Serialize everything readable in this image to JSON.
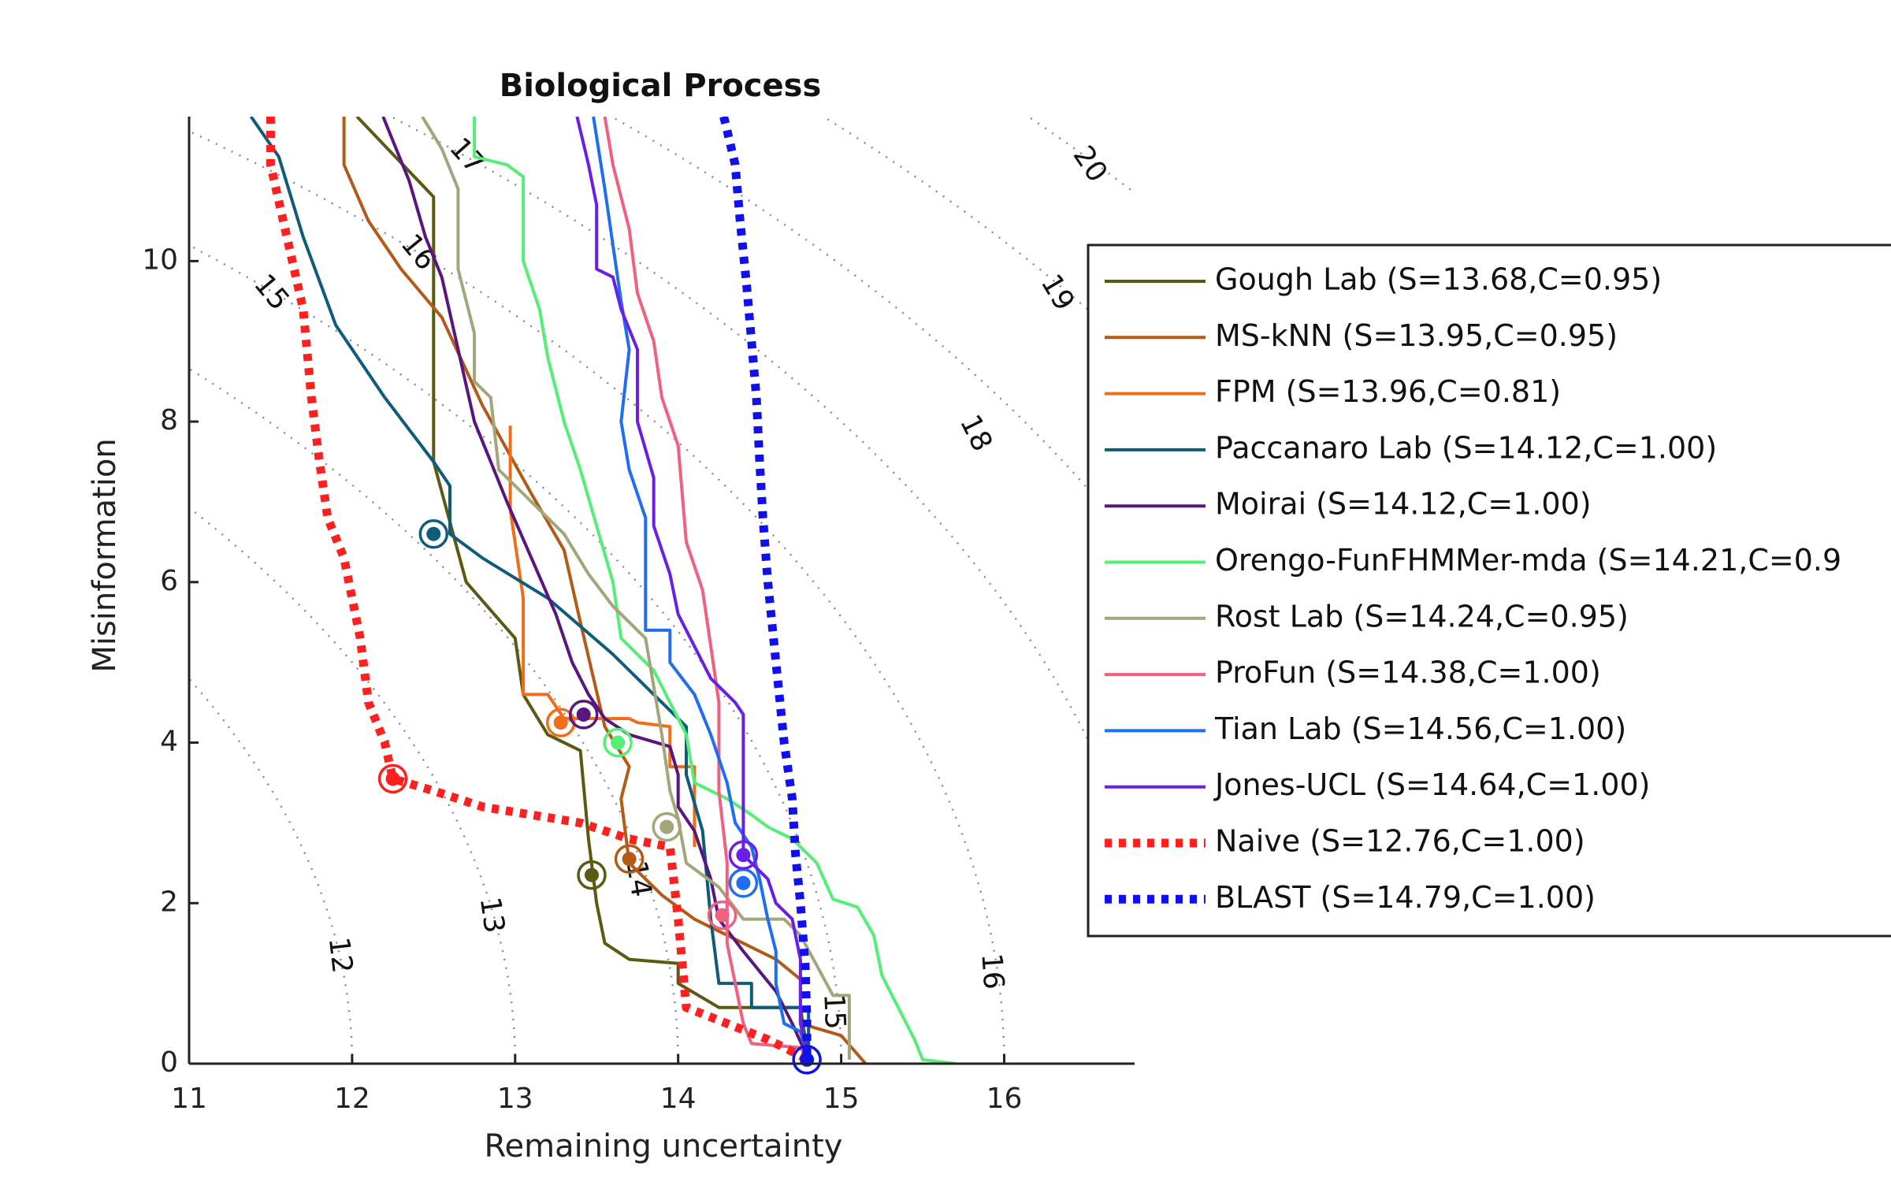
{
  "chart_data": {
    "type": "line",
    "title": "Biological Process",
    "xlabel": "Remaining uncertainty",
    "ylabel": "Misinformation",
    "xlim": [
      11,
      16.8
    ],
    "ylim": [
      0,
      11.8
    ],
    "xticks": [
      11,
      12,
      13,
      14,
      15,
      16
    ],
    "yticks": [
      0,
      2,
      4,
      6,
      8,
      10
    ],
    "grid": false,
    "legend_position": "right",
    "contours": [
      {
        "label": "12",
        "r": 12,
        "label_at": [
          11.92,
          1.35
        ]
      },
      {
        "label": "13",
        "r": 13,
        "label_at": [
          12.85,
          1.85
        ]
      },
      {
        "label": "14",
        "r": 14,
        "label_at": [
          13.75,
          2.3
        ]
      },
      {
        "label": "15",
        "r": 15,
        "label_at": [
          14.95,
          0.65
        ]
      },
      {
        "label": "16",
        "r": 16,
        "label_at": [
          15.92,
          1.15
        ]
      },
      {
        "label": "15",
        "r": 15,
        "label_at": [
          11.5,
          9.6
        ]
      },
      {
        "label": "16",
        "r": 16,
        "label_at": [
          12.4,
          10.1
        ]
      },
      {
        "label": "17",
        "r": 17,
        "label_at": [
          12.7,
          11.3
        ]
      },
      {
        "label": "18",
        "r": 18,
        "label_at": [
          15.82,
          7.85
        ]
      },
      {
        "label": "19",
        "r": 19,
        "label_at": [
          16.32,
          9.6
        ]
      },
      {
        "label": "20",
        "r": 20,
        "label_at": [
          16.52,
          11.2
        ]
      }
    ],
    "series": [
      {
        "name": "Gough Lab (S=13.68,C=0.95)",
        "color": "#5a5a12",
        "style": "solid",
        "points": [
          [
            12.03,
            11.8
          ],
          [
            12.5,
            10.8
          ],
          [
            12.5,
            7.5
          ],
          [
            12.7,
            6.0
          ],
          [
            13.0,
            5.3
          ],
          [
            13.05,
            4.6
          ],
          [
            13.2,
            4.1
          ],
          [
            13.4,
            3.9
          ],
          [
            13.45,
            2.8
          ],
          [
            13.5,
            2.0
          ],
          [
            13.55,
            1.5
          ],
          [
            13.7,
            1.3
          ],
          [
            14.0,
            1.25
          ],
          [
            14.0,
            1.0
          ],
          [
            14.25,
            0.7
          ],
          [
            14.75,
            0.7
          ],
          [
            14.8,
            0.05
          ]
        ],
        "marker": [
          13.47,
          2.35
        ]
      },
      {
        "name": "MS-kNN (S=13.95,C=0.95)",
        "color": "#b25a16",
        "style": "solid",
        "points": [
          [
            11.95,
            11.8
          ],
          [
            11.95,
            11.2
          ],
          [
            12.1,
            10.5
          ],
          [
            12.3,
            9.9
          ],
          [
            12.55,
            9.3
          ],
          [
            12.8,
            8.2
          ],
          [
            13.1,
            7.1
          ],
          [
            13.3,
            6.4
          ],
          [
            13.4,
            5.5
          ],
          [
            13.55,
            4.2
          ],
          [
            13.7,
            3.7
          ],
          [
            13.65,
            3.3
          ],
          [
            13.7,
            2.5
          ],
          [
            13.9,
            2.1
          ],
          [
            14.1,
            1.8
          ],
          [
            14.4,
            1.5
          ],
          [
            14.6,
            1.3
          ],
          [
            14.75,
            1.05
          ],
          [
            14.75,
            0.5
          ],
          [
            15.0,
            0.35
          ],
          [
            15.15,
            0.0
          ]
        ],
        "marker": [
          13.7,
          2.55
        ]
      },
      {
        "name": "FPM (S=13.96,C=0.81)",
        "color": "#f06d1a",
        "style": "solid",
        "points": [
          [
            12.97,
            7.95
          ],
          [
            12.97,
            6.9
          ],
          [
            13.05,
            5.8
          ],
          [
            13.05,
            4.6
          ],
          [
            13.2,
            4.6
          ],
          [
            13.3,
            4.3
          ],
          [
            13.7,
            4.3
          ],
          [
            13.75,
            4.25
          ],
          [
            13.95,
            4.2
          ],
          [
            13.95,
            3.7
          ],
          [
            14.1,
            3.7
          ],
          [
            14.1,
            2.7
          ]
        ],
        "marker": [
          13.28,
          4.25
        ]
      },
      {
        "name": "Paccanaro Lab (S=14.12,C=1.00)",
        "color": "#0f5b7a",
        "style": "solid",
        "points": [
          [
            11.38,
            11.8
          ],
          [
            11.55,
            11.3
          ],
          [
            11.7,
            10.3
          ],
          [
            11.9,
            9.2
          ],
          [
            12.2,
            8.3
          ],
          [
            12.5,
            7.5
          ],
          [
            12.6,
            7.2
          ],
          [
            12.6,
            6.6
          ],
          [
            12.8,
            6.3
          ],
          [
            13.2,
            5.8
          ],
          [
            13.6,
            5.1
          ],
          [
            13.9,
            4.5
          ],
          [
            14.05,
            4.2
          ],
          [
            14.05,
            3.6
          ],
          [
            14.15,
            2.9
          ],
          [
            14.2,
            1.8
          ],
          [
            14.25,
            1.0
          ],
          [
            14.45,
            1.0
          ],
          [
            14.45,
            0.7
          ],
          [
            14.8,
            0.7
          ],
          [
            14.8,
            0.05
          ]
        ],
        "marker": [
          12.5,
          6.6
        ]
      },
      {
        "name": "Moirai (S=14.12,C=1.00)",
        "color": "#5a1680",
        "style": "solid",
        "points": [
          [
            12.19,
            11.8
          ],
          [
            12.35,
            11.0
          ],
          [
            12.45,
            10.3
          ],
          [
            12.55,
            9.8
          ],
          [
            12.65,
            8.9
          ],
          [
            12.75,
            8.0
          ],
          [
            12.85,
            7.5
          ],
          [
            12.95,
            7.0
          ],
          [
            13.1,
            6.3
          ],
          [
            13.25,
            5.6
          ],
          [
            13.35,
            5.0
          ],
          [
            13.45,
            4.6
          ],
          [
            13.55,
            4.3
          ],
          [
            13.7,
            4.1
          ],
          [
            13.95,
            3.95
          ],
          [
            14.0,
            3.6
          ],
          [
            14.0,
            3.2
          ],
          [
            14.1,
            2.9
          ],
          [
            14.2,
            2.3
          ],
          [
            14.25,
            1.8
          ],
          [
            14.4,
            1.4
          ],
          [
            14.5,
            1.15
          ],
          [
            14.6,
            0.9
          ],
          [
            14.7,
            0.5
          ],
          [
            14.8,
            0.05
          ]
        ],
        "marker": [
          13.42,
          4.35
        ]
      },
      {
        "name": "Orengo-FunFHMMer-mda (S=14.21,C=0.9",
        "color": "#55ee77",
        "style": "solid",
        "points": [
          [
            12.75,
            11.8
          ],
          [
            12.75,
            11.3
          ],
          [
            12.95,
            11.2
          ],
          [
            13.05,
            11.05
          ],
          [
            13.05,
            10.0
          ],
          [
            13.15,
            9.4
          ],
          [
            13.2,
            8.8
          ],
          [
            13.3,
            8.0
          ],
          [
            13.4,
            7.4
          ],
          [
            13.5,
            6.7
          ],
          [
            13.6,
            6.0
          ],
          [
            13.65,
            5.3
          ],
          [
            13.85,
            4.9
          ],
          [
            13.95,
            4.5
          ],
          [
            14.05,
            4.1
          ],
          [
            14.1,
            3.5
          ],
          [
            14.3,
            3.3
          ],
          [
            14.45,
            3.1
          ],
          [
            14.55,
            2.95
          ],
          [
            14.7,
            2.8
          ],
          [
            14.85,
            2.5
          ],
          [
            14.95,
            2.05
          ],
          [
            15.1,
            1.95
          ],
          [
            15.2,
            1.6
          ],
          [
            15.25,
            1.1
          ],
          [
            15.35,
            0.7
          ],
          [
            15.45,
            0.3
          ],
          [
            15.5,
            0.05
          ],
          [
            15.7,
            0.0
          ]
        ],
        "marker": [
          13.63,
          4.0
        ]
      },
      {
        "name": "Rost Lab (S=14.24,C=0.95)",
        "color": "#a3a57a",
        "style": "solid",
        "points": [
          [
            12.43,
            11.8
          ],
          [
            12.55,
            11.4
          ],
          [
            12.65,
            10.9
          ],
          [
            12.65,
            9.9
          ],
          [
            12.75,
            9.1
          ],
          [
            12.75,
            8.5
          ],
          [
            12.85,
            8.3
          ],
          [
            12.9,
            7.4
          ],
          [
            13.1,
            7.0
          ],
          [
            13.3,
            6.6
          ],
          [
            13.45,
            6.1
          ],
          [
            13.6,
            5.7
          ],
          [
            13.8,
            5.3
          ],
          [
            13.85,
            4.7
          ],
          [
            13.9,
            4.1
          ],
          [
            13.95,
            3.4
          ],
          [
            14.0,
            3.05
          ],
          [
            14.05,
            2.5
          ],
          [
            14.25,
            2.2
          ],
          [
            14.4,
            1.8
          ],
          [
            14.65,
            1.8
          ],
          [
            14.75,
            1.6
          ],
          [
            14.95,
            0.85
          ],
          [
            15.05,
            0.85
          ],
          [
            15.05,
            0.05
          ]
        ],
        "marker": [
          13.93,
          2.95
        ]
      },
      {
        "name": "ProFun (S=14.38,C=1.00)",
        "color": "#f0607f",
        "style": "solid",
        "points": [
          [
            13.55,
            11.8
          ],
          [
            13.6,
            11.2
          ],
          [
            13.7,
            10.4
          ],
          [
            13.75,
            9.6
          ],
          [
            13.85,
            9.0
          ],
          [
            13.9,
            8.3
          ],
          [
            14.0,
            7.7
          ],
          [
            14.05,
            6.5
          ],
          [
            14.15,
            5.9
          ],
          [
            14.2,
            5.2
          ],
          [
            14.25,
            4.5
          ],
          [
            14.25,
            3.4
          ],
          [
            14.3,
            2.5
          ],
          [
            14.3,
            1.5
          ],
          [
            14.4,
            0.5
          ],
          [
            14.45,
            0.25
          ],
          [
            14.75,
            0.2
          ],
          [
            14.8,
            0.05
          ]
        ],
        "marker": [
          14.27,
          1.85
        ]
      },
      {
        "name": "Tian Lab (S=14.56,C=1.00)",
        "color": "#1f6ef0",
        "style": "solid",
        "points": [
          [
            13.48,
            11.8
          ],
          [
            13.55,
            10.9
          ],
          [
            13.6,
            10.2
          ],
          [
            13.65,
            9.5
          ],
          [
            13.7,
            8.9
          ],
          [
            13.65,
            8.0
          ],
          [
            13.7,
            7.4
          ],
          [
            13.8,
            6.8
          ],
          [
            13.8,
            5.4
          ],
          [
            13.95,
            5.4
          ],
          [
            13.95,
            5.0
          ],
          [
            14.1,
            4.6
          ],
          [
            14.2,
            4.1
          ],
          [
            14.3,
            3.5
          ],
          [
            14.35,
            3.0
          ],
          [
            14.45,
            2.7
          ],
          [
            14.5,
            2.3
          ],
          [
            14.55,
            1.8
          ],
          [
            14.6,
            1.4
          ],
          [
            14.6,
            1.0
          ],
          [
            14.65,
            0.5
          ],
          [
            14.75,
            0.4
          ],
          [
            14.8,
            0.05
          ]
        ],
        "marker": [
          14.4,
          2.25
        ]
      },
      {
        "name": "Jones-UCL (S=14.64,C=1.00)",
        "color": "#6b1ee6",
        "style": "solid",
        "points": [
          [
            13.38,
            11.8
          ],
          [
            13.45,
            11.2
          ],
          [
            13.5,
            10.7
          ],
          [
            13.5,
            9.9
          ],
          [
            13.6,
            9.8
          ],
          [
            13.65,
            9.4
          ],
          [
            13.75,
            8.9
          ],
          [
            13.75,
            8.0
          ],
          [
            13.85,
            7.3
          ],
          [
            13.85,
            6.7
          ],
          [
            13.95,
            6.1
          ],
          [
            14.0,
            5.6
          ],
          [
            14.1,
            5.2
          ],
          [
            14.2,
            4.8
          ],
          [
            14.35,
            4.5
          ],
          [
            14.4,
            4.35
          ],
          [
            14.4,
            2.6
          ],
          [
            14.55,
            2.3
          ],
          [
            14.6,
            2.0
          ],
          [
            14.7,
            1.8
          ],
          [
            14.75,
            1.3
          ],
          [
            14.75,
            0.5
          ],
          [
            14.8,
            0.05
          ]
        ],
        "marker": [
          14.4,
          2.6
        ]
      },
      {
        "name": "Naive (S=12.76,C=1.00)",
        "color": "#ff1f1f",
        "style": "dotted",
        "points": [
          [
            11.5,
            11.8
          ],
          [
            11.5,
            11.2
          ],
          [
            11.6,
            10.3
          ],
          [
            11.7,
            9.4
          ],
          [
            11.75,
            8.3
          ],
          [
            11.8,
            7.5
          ],
          [
            11.85,
            6.8
          ],
          [
            11.95,
            6.3
          ],
          [
            12.0,
            5.8
          ],
          [
            12.05,
            5.3
          ],
          [
            12.1,
            4.5
          ],
          [
            12.2,
            4.0
          ],
          [
            12.25,
            3.55
          ],
          [
            12.5,
            3.4
          ],
          [
            12.8,
            3.2
          ],
          [
            13.1,
            3.1
          ],
          [
            13.4,
            3.0
          ],
          [
            13.7,
            2.8
          ],
          [
            13.95,
            2.7
          ],
          [
            14.0,
            1.8
          ],
          [
            14.05,
            0.7
          ],
          [
            14.3,
            0.5
          ],
          [
            14.55,
            0.3
          ],
          [
            14.7,
            0.15
          ],
          [
            14.8,
            0.05
          ]
        ],
        "marker": [
          12.25,
          3.55
        ]
      },
      {
        "name": "BLAST (S=14.79,C=1.00)",
        "color": "#1010ee",
        "style": "dotted",
        "points": [
          [
            14.28,
            11.8
          ],
          [
            14.35,
            11.2
          ],
          [
            14.38,
            10.5
          ],
          [
            14.42,
            9.7
          ],
          [
            14.45,
            9.0
          ],
          [
            14.48,
            8.3
          ],
          [
            14.5,
            7.5
          ],
          [
            14.52,
            6.8
          ],
          [
            14.55,
            6.0
          ],
          [
            14.6,
            5.0
          ],
          [
            14.65,
            4.0
          ],
          [
            14.7,
            3.3
          ],
          [
            14.72,
            2.6
          ],
          [
            14.75,
            2.0
          ],
          [
            14.78,
            1.2
          ],
          [
            14.79,
            0.5
          ],
          [
            14.79,
            0.05
          ]
        ],
        "marker": [
          14.79,
          0.05
        ]
      }
    ]
  }
}
